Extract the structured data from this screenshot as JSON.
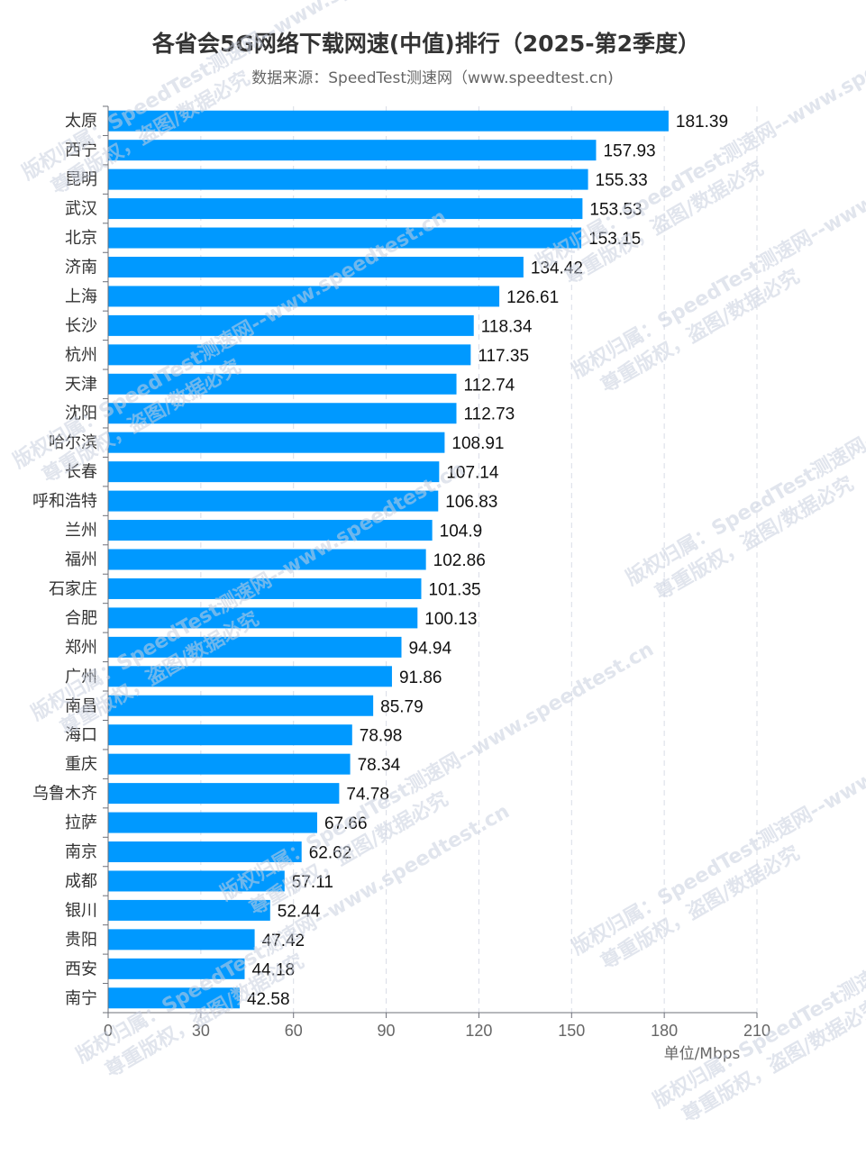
{
  "chart_data": {
    "type": "bar",
    "orientation": "horizontal",
    "title": "各省会5G网络下载网速(中值)排行（2025-第2季度）",
    "subtitle": "数据来源：SpeedTest测速网（www.speedtest.cn)",
    "categories": [
      "太原",
      "西宁",
      "昆明",
      "武汉",
      "北京",
      "济南",
      "上海",
      "长沙",
      "杭州",
      "天津",
      "沈阳",
      "哈尔滨",
      "长春",
      "呼和浩特",
      "兰州",
      "福州",
      "石家庄",
      "合肥",
      "郑州",
      "广州",
      "南昌",
      "海口",
      "重庆",
      "乌鲁木齐",
      "拉萨",
      "南京",
      "成都",
      "银川",
      "贵阳",
      "西安",
      "南宁"
    ],
    "values": [
      181.39,
      157.93,
      155.33,
      153.53,
      153.15,
      134.42,
      126.61,
      118.34,
      117.35,
      112.74,
      112.73,
      108.91,
      107.14,
      106.83,
      104.9,
      102.86,
      101.35,
      100.13,
      94.94,
      91.86,
      85.79,
      78.98,
      78.34,
      74.78,
      67.66,
      62.62,
      57.11,
      52.44,
      47.42,
      44.18,
      42.58
    ],
    "value_labels": [
      "181.39",
      "157.93",
      "155.33",
      "153.53",
      "153.15",
      "134.42",
      "126.61",
      "118.34",
      "117.35",
      "112.74",
      "112.73",
      "108.91",
      "107.14",
      "106.83",
      "104.9",
      "102.86",
      "101.35",
      "100.13",
      "94.94",
      "91.86",
      "85.79",
      "78.98",
      "78.34",
      "74.78",
      "67.66",
      "62.62",
      "57.11",
      "52.44",
      "47.42",
      "44.18",
      "42.58"
    ],
    "xlim": [
      0,
      210
    ],
    "x_ticks": [
      "0",
      "30",
      "60",
      "90",
      "120",
      "150",
      "180",
      "210"
    ],
    "xlabel": "单位/Mbps",
    "ylabel": "",
    "grid": "vertical dashed",
    "legend": "none",
    "bar_color": "#0099ff"
  },
  "watermark": {
    "line1": "版权归属：SpeedTest测速网--www.speedtest.cn",
    "line2": "尊重版权，盗图/数据必究"
  }
}
